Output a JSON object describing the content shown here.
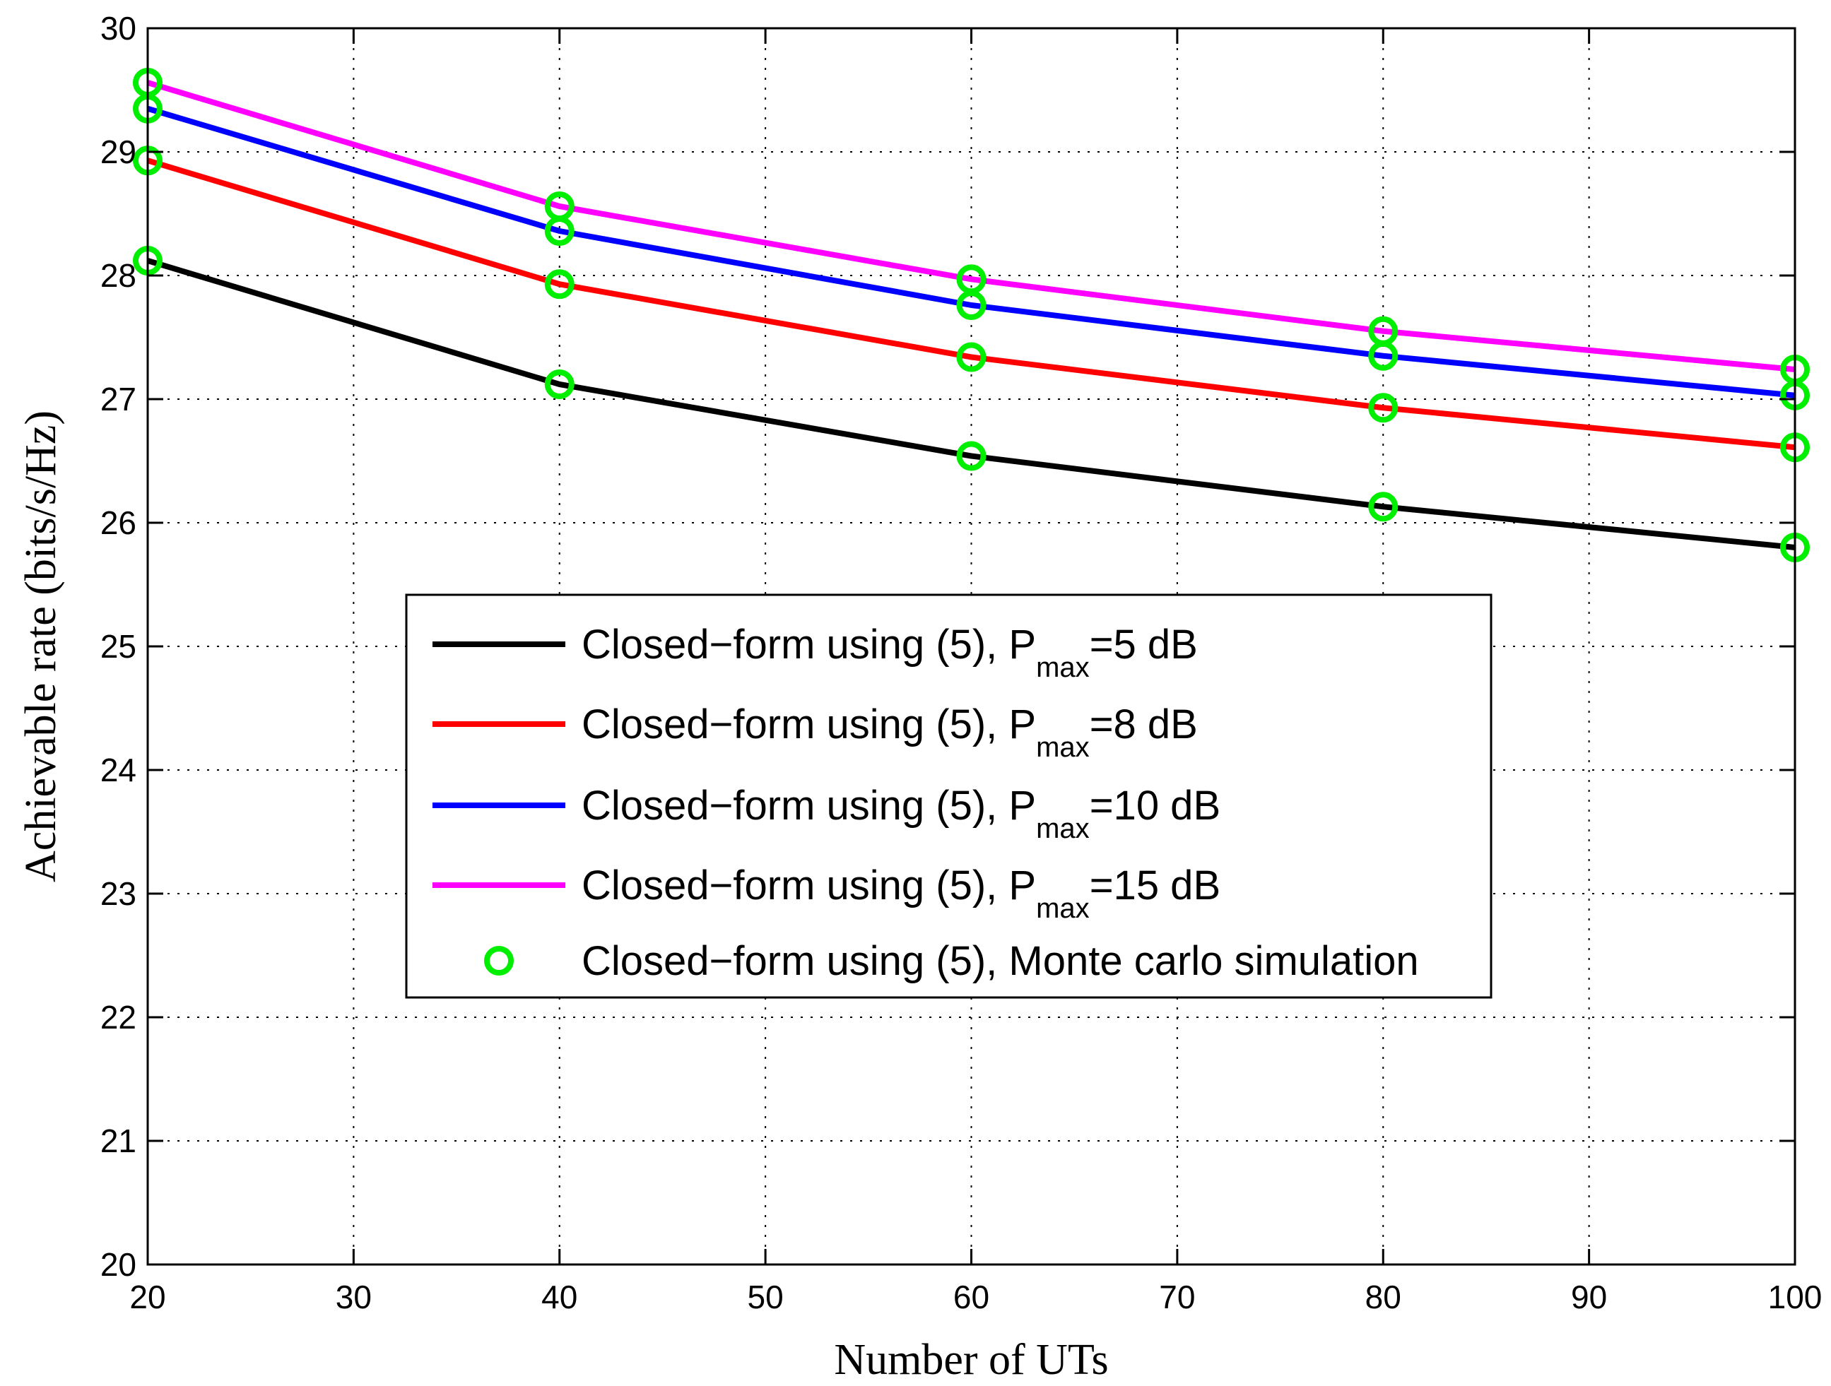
{
  "chart_data": {
    "type": "line",
    "xlabel": "Number of UTs",
    "ylabel": "Achievable rate (bits/s/Hz)",
    "xlim": [
      20,
      100
    ],
    "ylim": [
      20,
      30
    ],
    "xticks": [
      20,
      30,
      40,
      50,
      60,
      70,
      80,
      90,
      100
    ],
    "yticks": [
      20,
      21,
      22,
      23,
      24,
      25,
      26,
      27,
      28,
      29,
      30
    ],
    "grid": true,
    "legend_position": "center",
    "x": [
      20,
      40,
      60,
      80,
      100
    ],
    "series": [
      {
        "name": "Closed−form using (5), P",
        "name_sub": "max",
        "name_tail": "=5 dB",
        "color": "#000000",
        "values": [
          28.12,
          27.12,
          26.54,
          26.13,
          25.8
        ]
      },
      {
        "name": "Closed−form using (5), P",
        "name_sub": "max",
        "name_tail": "=8 dB",
        "color": "#ff0000",
        "values": [
          28.93,
          27.93,
          27.34,
          26.93,
          26.61
        ]
      },
      {
        "name": "Closed−form using (5), P",
        "name_sub": "max",
        "name_tail": "=10 dB",
        "color": "#0000ff",
        "values": [
          29.35,
          28.36,
          27.76,
          27.35,
          27.03
        ]
      },
      {
        "name": "Closed−form using (5), P",
        "name_sub": "max",
        "name_tail": "=15 dB",
        "color": "#ff00ff",
        "values": [
          29.56,
          28.56,
          27.97,
          27.55,
          27.24
        ]
      }
    ],
    "markers": {
      "name": "Closed−form using (5), Monte carlo simulation",
      "color": "#00ee00",
      "shape": "circle"
    }
  }
}
